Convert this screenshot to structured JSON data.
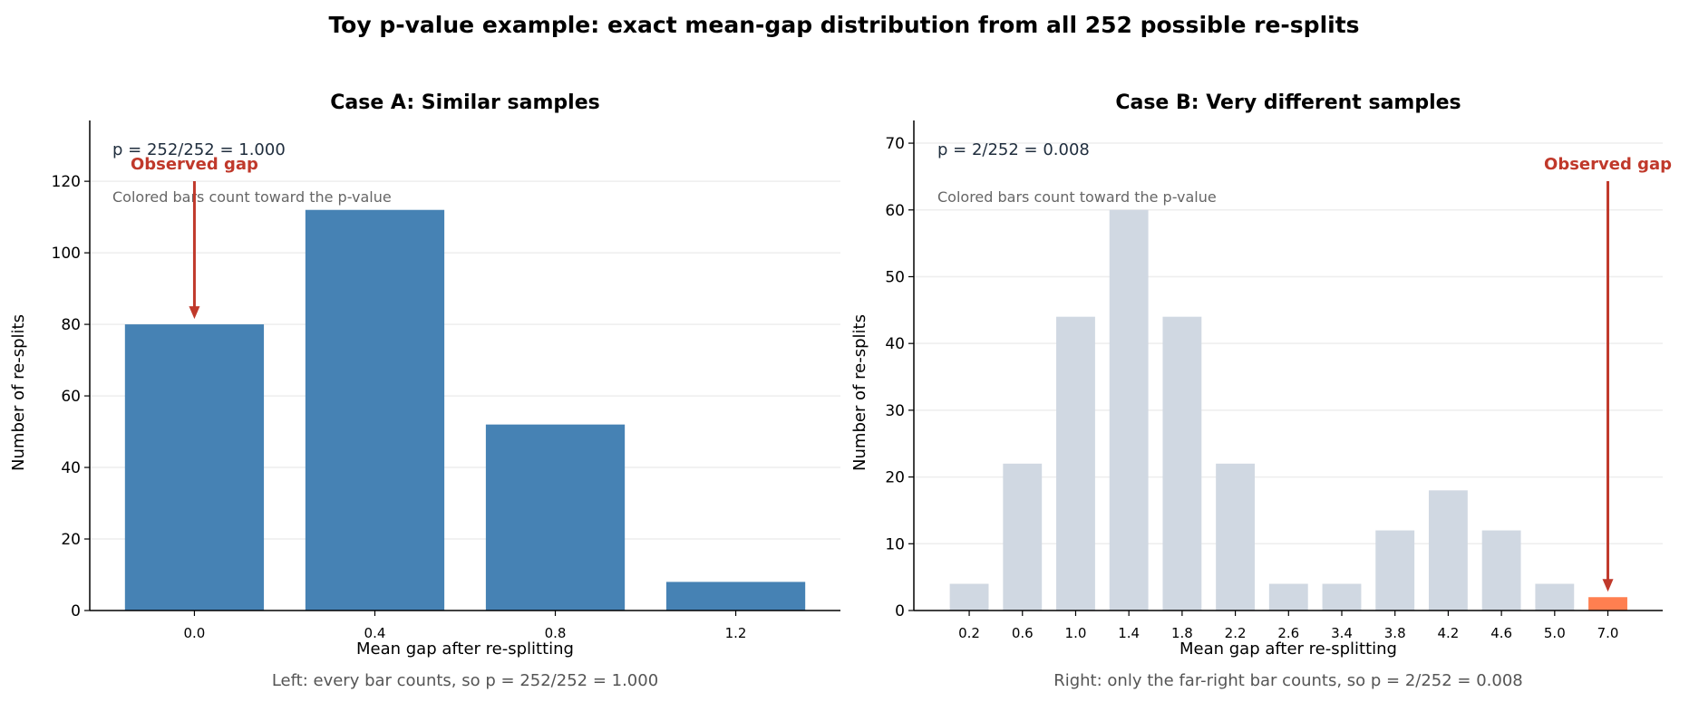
{
  "title": "Toy p-value example: exact mean-gap distribution from all 252 possible re-splits",
  "colors": {
    "counted_a": "#4682b4",
    "not_counted": "#d0d8e2",
    "counted_b": "#ff7f50",
    "observed": "#c0392b"
  },
  "chart_data": [
    {
      "type": "bar",
      "title": "Case A: Similar samples",
      "xlabel": "Mean gap after re-splitting",
      "ylabel": "Number of re-splits",
      "categories": [
        "0.0",
        "0.4",
        "0.8",
        "1.2"
      ],
      "values": [
        80,
        112,
        52,
        8
      ],
      "counted": [
        true,
        true,
        true,
        true
      ],
      "yticks": [
        0,
        20,
        40,
        60,
        80,
        100,
        120
      ],
      "ylim": [
        0,
        137
      ],
      "observed_index": 0,
      "observed_label": "Observed gap",
      "p_text": "p = 252/252 = 1.000",
      "note": "Colored bars count toward the p-value",
      "caption": "Left: every bar counts, so p = 252/252 = 1.000",
      "grid": "y"
    },
    {
      "type": "bar",
      "title": "Case B: Very different samples",
      "xlabel": "Mean gap after re-splitting",
      "ylabel": "Number of re-splits",
      "categories": [
        "0.2",
        "0.6",
        "1.0",
        "1.4",
        "1.8",
        "2.2",
        "2.6",
        "3.4",
        "3.8",
        "4.2",
        "4.6",
        "5.0",
        "7.0"
      ],
      "values": [
        4,
        22,
        44,
        60,
        44,
        22,
        4,
        4,
        12,
        18,
        12,
        4,
        2
      ],
      "counted": [
        false,
        false,
        false,
        false,
        false,
        false,
        false,
        false,
        false,
        false,
        false,
        false,
        true
      ],
      "yticks": [
        0,
        10,
        20,
        30,
        40,
        50,
        60,
        70
      ],
      "ylim": [
        0,
        73.4
      ],
      "observed_index": 12,
      "observed_label": "Observed gap",
      "p_text": "p = 2/252 = 0.008",
      "note": "Colored bars count toward the p-value",
      "caption": "Right: only the far-right bar counts, so p = 2/252 = 0.008",
      "grid": "y"
    }
  ]
}
